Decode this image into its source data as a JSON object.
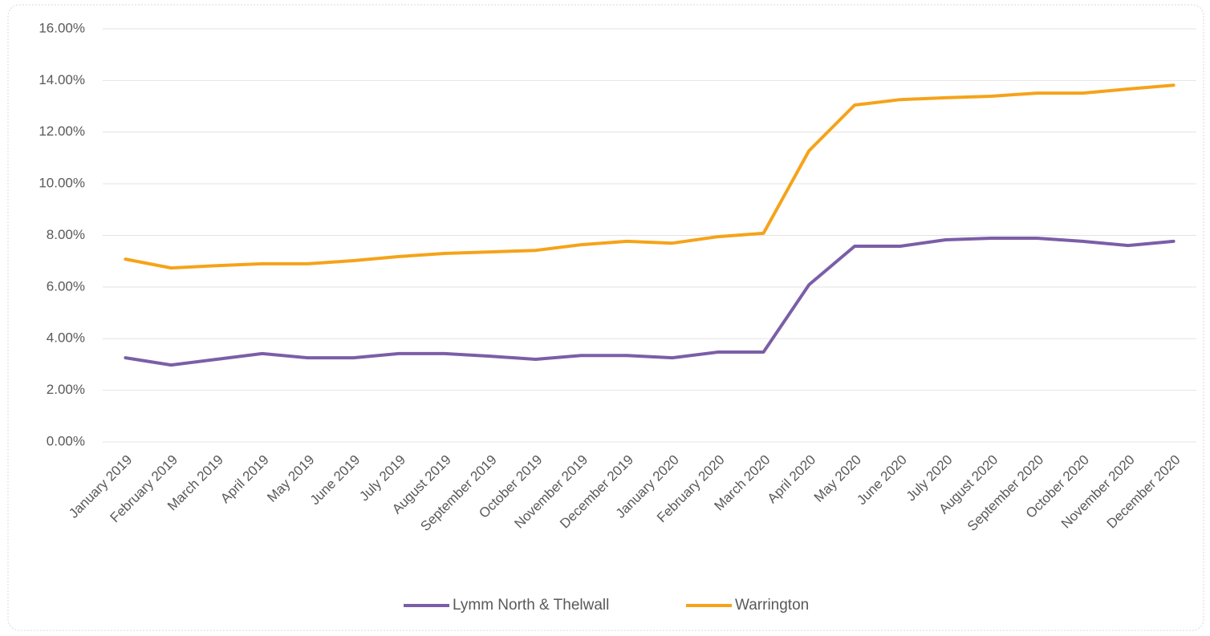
{
  "chart_data": {
    "type": "line",
    "categories": [
      "January 2019",
      "February 2019",
      "March 2019",
      "April 2019",
      "May 2019",
      "June 2019",
      "July 2019",
      "August 2019",
      "September 2019",
      "October 2019",
      "November 2019",
      "December 2019",
      "January 2020",
      "February 2020",
      "March 2020",
      "April 2020",
      "May 2020",
      "June 2020",
      "July 2020",
      "August 2020",
      "September 2020",
      "October 2020",
      "November 2020",
      "December 2020"
    ],
    "series": [
      {
        "name": "Lymm North & Thelwall",
        "color": "#7b5ea7",
        "values": [
          3.26,
          2.98,
          3.2,
          3.42,
          3.26,
          3.26,
          3.42,
          3.42,
          3.32,
          3.2,
          3.35,
          3.35,
          3.26,
          3.48,
          3.48,
          6.09,
          7.58,
          7.58,
          7.83,
          7.89,
          7.89,
          7.77,
          7.61,
          7.77
        ]
      },
      {
        "name": "Warrington",
        "color": "#f5a31a",
        "values": [
          7.08,
          6.74,
          6.83,
          6.9,
          6.9,
          7.02,
          7.18,
          7.3,
          7.36,
          7.42,
          7.64,
          7.77,
          7.7,
          7.95,
          8.08,
          11.28,
          13.05,
          13.26,
          13.33,
          13.39,
          13.51,
          13.51,
          13.67,
          13.82
        ]
      }
    ],
    "ylim": [
      0,
      16
    ],
    "yticks": [
      {
        "value": 0,
        "label": "0.00%"
      },
      {
        "value": 2,
        "label": "2.00%"
      },
      {
        "value": 4,
        "label": "4.00%"
      },
      {
        "value": 6,
        "label": "6.00%"
      },
      {
        "value": 8,
        "label": "8.00%"
      },
      {
        "value": 10,
        "label": "10.00%"
      },
      {
        "value": 12,
        "label": "12.00%"
      },
      {
        "value": 14,
        "label": "14.00%"
      },
      {
        "value": 16,
        "label": "16.00%"
      }
    ],
    "grid": true,
    "legend": "bottom"
  }
}
